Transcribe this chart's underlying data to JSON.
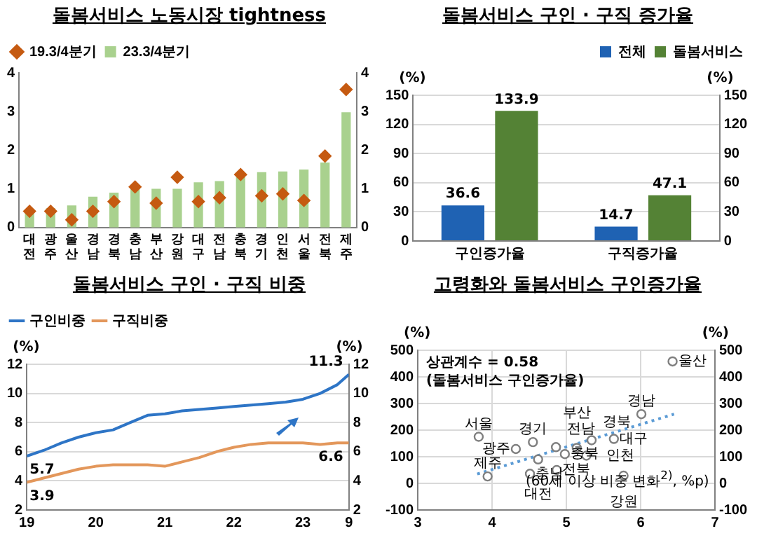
{
  "chart_data": [
    {
      "type": "bar",
      "title": "돌봄서비스 노동시장 tightness",
      "categories": [
        "대전",
        "광주",
        "울산",
        "경남",
        "경북",
        "충남",
        "부산",
        "강원",
        "대구",
        "전남",
        "충북",
        "경기",
        "인천",
        "서울",
        "전북",
        "제주"
      ],
      "series": [
        {
          "name": "23.3/4분기",
          "color": "#a9d18e",
          "values": [
            0.43,
            0.5,
            0.57,
            0.8,
            0.9,
            1.0,
            1.0,
            1.0,
            1.17,
            1.2,
            1.3,
            1.43,
            1.45,
            1.5,
            1.68,
            2.98
          ]
        },
        {
          "name": "19.3/4분기",
          "type": "scatter",
          "marker": "diamond",
          "color": "#c55a11",
          "x": [
            "대전",
            "광주",
            "울산",
            "경남",
            "경북",
            "충남",
            "부산",
            "강원",
            "대구",
            "전남",
            "충북",
            "경기",
            "인천",
            "서울",
            "전북",
            "제주"
          ],
          "values": [
            0.42,
            0.42,
            0.2,
            0.42,
            0.67,
            1.05,
            0.63,
            1.3,
            0.67,
            0.77,
            1.37,
            0.82,
            0.87,
            0.7,
            1.85,
            3.57
          ]
        }
      ],
      "ylim": [
        0,
        4
      ],
      "yticks": [
        0,
        1,
        2,
        3,
        4
      ],
      "y2lim": [
        0,
        4
      ],
      "y2ticks": [
        0,
        1,
        2,
        3,
        4
      ],
      "grid": false,
      "legend": "top left"
    },
    {
      "type": "bar",
      "title": "돌봄서비스 구인 · 구직 증가율",
      "categories": [
        "구인증가율",
        "구직증가율"
      ],
      "series": [
        {
          "name": "전체",
          "color": "#1f62b3",
          "values": [
            36.6,
            14.7
          ]
        },
        {
          "name": "돌봄서비스",
          "color": "#548235",
          "values": [
            133.9,
            47.1
          ]
        }
      ],
      "ylabel": "(%)",
      "y2label": "(%)",
      "ylim": [
        0,
        150
      ],
      "yticks": [
        0,
        30,
        60,
        90,
        120,
        150
      ],
      "y2lim": [
        0,
        150
      ],
      "y2ticks": [
        0,
        30,
        60,
        90,
        120,
        150
      ],
      "grid": "y",
      "legend": "top right",
      "data_labels": true
    },
    {
      "type": "line",
      "title": "돌봄서비스 구인 · 구직 비중",
      "x": [
        "2019-01",
        "2019-04",
        "2019-07",
        "2019-10",
        "2020-01",
        "2020-04",
        "2020-07",
        "2020-10",
        "2021-01",
        "2021-04",
        "2021-07",
        "2021-10",
        "2022-01",
        "2022-04",
        "2022-07",
        "2022-10",
        "2023-01",
        "2023-04",
        "2023-07",
        "2023-09"
      ],
      "series": [
        {
          "name": "구인비중",
          "color": "#2e75c6",
          "values": [
            5.7,
            6.1,
            6.6,
            7.0,
            7.3,
            7.5,
            8.0,
            8.5,
            8.6,
            8.8,
            8.9,
            9.0,
            9.1,
            9.2,
            9.3,
            9.4,
            9.6,
            10.0,
            10.6,
            11.3
          ]
        },
        {
          "name": "구직비중",
          "color": "#e3975b",
          "values": [
            3.9,
            4.2,
            4.5,
            4.8,
            5.0,
            5.1,
            5.1,
            5.1,
            5.0,
            5.3,
            5.6,
            6.0,
            6.3,
            6.5,
            6.6,
            6.6,
            6.6,
            6.5,
            6.6,
            6.6
          ]
        }
      ],
      "xlim": [
        "2019-01",
        "2023-09"
      ],
      "xticks": [
        {
          "value": "2019-01",
          "label": "19"
        },
        {
          "value": "2020-01",
          "label": "20"
        },
        {
          "value": "2021-01",
          "label": "21"
        },
        {
          "value": "2022-01",
          "label": "22"
        },
        {
          "value": "2023-01",
          "label": "23"
        },
        {
          "value": "2023-09",
          "label": "9"
        }
      ],
      "ylabel": "(%)",
      "y2label": "(%)",
      "ylim": [
        2,
        12
      ],
      "yticks": [
        2,
        4,
        6,
        8,
        10,
        12
      ],
      "y2lim": [
        2,
        12
      ],
      "y2ticks": [
        2,
        4,
        6,
        8,
        10,
        12
      ],
      "grid": "y",
      "legend": "top left",
      "marker": "none",
      "annotations": [
        {
          "text": "5.7",
          "x": "2019-01",
          "y": 5.7
        },
        {
          "text": "3.9",
          "x": "2019-01",
          "y": 3.9
        },
        {
          "text": "11.3",
          "x": "2023-09",
          "y": 11.3
        },
        {
          "text": "6.6",
          "x": "2023-09",
          "y": 6.6
        }
      ]
    },
    {
      "type": "scatter",
      "title": "고령화와 돌봄서비스 구인증가율",
      "series": [
        {
          "color": "#7f7f7f",
          "marker": "circle",
          "x": [
            3.82,
            3.94,
            4.32,
            4.55,
            4.62,
            4.51,
            4.86,
            4.98,
            4.87,
            5.14,
            5.34,
            5.27,
            5.64,
            5.77,
            6.01,
            6.43
          ],
          "values": [
            175,
            26,
            129,
            155,
            90,
            36,
            136,
            110,
            50,
            133,
            162,
            104,
            167,
            29,
            260,
            458
          ]
        },
        {
          "type": "line",
          "color": "#5b9bd5",
          "marker": "none",
          "line_style": "dotted",
          "x": [
            3.8,
            6.45
          ],
          "values": [
            35,
            260
          ]
        }
      ],
      "xlabel": "(60세 이상 비중 변화$^{2)}$, %p)",
      "ylabel": "(%)",
      "y2label": "(%)",
      "xlim": [
        3,
        7
      ],
      "xticks": [
        3,
        4,
        5,
        6,
        7
      ],
      "ylim": [
        -100,
        500
      ],
      "yticks": [
        -100,
        0,
        100,
        200,
        300,
        400,
        500
      ],
      "y2lim": [
        -100,
        500
      ],
      "y2ticks": [
        -100,
        0,
        100,
        200,
        300,
        400,
        500
      ],
      "grid": true,
      "legend": false,
      "annotations": [
        "상관계수 = 0.58",
        "(돌봄서비스 구인증가율)",
        {
          "text": "서울",
          "x": 3.82,
          "y": 175
        },
        {
          "text": "제주",
          "x": 3.94,
          "y": 26
        },
        {
          "text": "광주",
          "x": 4.32,
          "y": 129
        },
        {
          "text": "경기",
          "x": 4.55,
          "y": 155
        },
        {
          "text": "대전",
          "x": 4.62,
          "y": 90
        },
        {
          "text": "충남",
          "x": 4.51,
          "y": 36
        },
        {
          "text": "전남",
          "x": 4.86,
          "y": 136
        },
        {
          "text": "충북",
          "x": 4.98,
          "y": 110
        },
        {
          "text": "전북",
          "x": 4.87,
          "y": 50
        },
        {
          "text": "부산",
          "x": 5.14,
          "y": 133
        },
        {
          "text": "경북",
          "x": 5.34,
          "y": 162
        },
        {
          "text": "인천",
          "x": 5.27,
          "y": 104
        },
        {
          "text": "대구",
          "x": 5.64,
          "y": 167
        },
        {
          "text": "강원",
          "x": 5.77,
          "y": 29
        },
        {
          "text": "경남",
          "x": 6.01,
          "y": 260
        },
        {
          "text": "울산",
          "x": 6.43,
          "y": 458
        }
      ]
    }
  ]
}
